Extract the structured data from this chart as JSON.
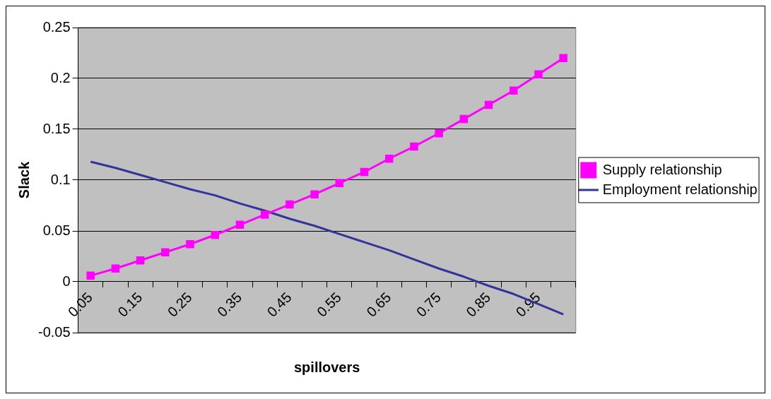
{
  "chart_data": {
    "type": "line",
    "xlabel": "spillovers",
    "ylabel": "Slack",
    "categories": [
      "0.05",
      null,
      "0.15",
      null,
      "0.25",
      null,
      "0.35",
      null,
      "0.45",
      null,
      "0.55",
      null,
      "0.65",
      null,
      "0.75",
      null,
      "0.85",
      null,
      "0.95",
      null
    ],
    "series": [
      {
        "name": "Supply relationship",
        "color": "#ff00ff",
        "marker": "square",
        "values": [
          0.006,
          0.013,
          0.021,
          0.029,
          0.037,
          0.046,
          0.056,
          0.066,
          0.076,
          0.086,
          0.097,
          0.108,
          0.121,
          0.133,
          0.146,
          0.16,
          0.174,
          0.188,
          0.204,
          0.22
        ]
      },
      {
        "name": "Employment relationship",
        "color": "#333399",
        "marker": "none",
        "values": [
          0.118,
          0.112,
          0.105,
          0.098,
          0.091,
          0.085,
          0.077,
          0.07,
          0.062,
          0.055,
          0.047,
          0.039,
          0.031,
          0.022,
          0.013,
          0.005,
          -0.004,
          -0.012,
          -0.022,
          -0.032
        ]
      }
    ],
    "ylim": [
      -0.05,
      0.25
    ],
    "yticks": [
      -0.05,
      0,
      0.05,
      0.1,
      0.15,
      0.2,
      0.25
    ],
    "grid": "y",
    "legend": "right"
  }
}
